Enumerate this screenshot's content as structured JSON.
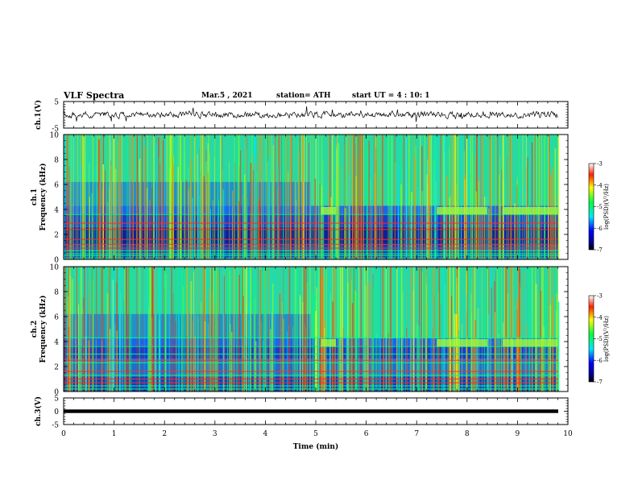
{
  "header": {
    "title": "VLF Spectra",
    "date": "Mar.5 , 2021",
    "station": "station= ATH",
    "start": "start UT = 4 : 10: 1"
  },
  "chart_data": [
    {
      "type": "line",
      "panel": "ch1-waveform",
      "ylabel": "ch.1(V)",
      "ylim": [
        -5,
        5
      ],
      "yticks": [
        "5",
        "-5"
      ],
      "xlim": [
        0,
        10
      ]
    },
    {
      "type": "heatmap",
      "panel": "ch1-spectrogram",
      "ylabel_line1": "ch.1",
      "ylabel_line2": "Frequency (kHz)",
      "ylim": [
        0,
        10
      ],
      "yticks": [
        "0",
        "2",
        "4",
        "6",
        "8",
        "10"
      ],
      "xlim": [
        0,
        10
      ],
      "colorbar": {
        "label": "log(PSD)(V²/Hz)",
        "ticks": [
          "-3",
          "-4",
          "-5",
          "-6",
          "-7"
        ],
        "range": [
          -7,
          -3
        ]
      }
    },
    {
      "type": "heatmap",
      "panel": "ch2-spectrogram",
      "ylabel_line1": "ch.2",
      "ylabel_line2": "Frequency (kHz)",
      "ylim": [
        0,
        10
      ],
      "yticks": [
        "0",
        "2",
        "4",
        "6",
        "8",
        "10"
      ],
      "xlim": [
        0,
        10
      ],
      "colorbar": {
        "label": "log(PSD)(V²/Hz)",
        "ticks": [
          "-3",
          "-4",
          "-5",
          "-6",
          "-7"
        ],
        "range": [
          -7,
          -3
        ]
      }
    },
    {
      "type": "line",
      "panel": "ch3-waveform",
      "ylabel": "ch.3(V)",
      "ylim": [
        -5,
        5
      ],
      "yticks": [
        "5",
        "0",
        "-5"
      ],
      "xlim": [
        0,
        10
      ],
      "xlabel": "Time (min)",
      "xticks": [
        "0",
        "1",
        "2",
        "3",
        "4",
        "5",
        "6",
        "7",
        "8",
        "9",
        "10"
      ]
    }
  ]
}
